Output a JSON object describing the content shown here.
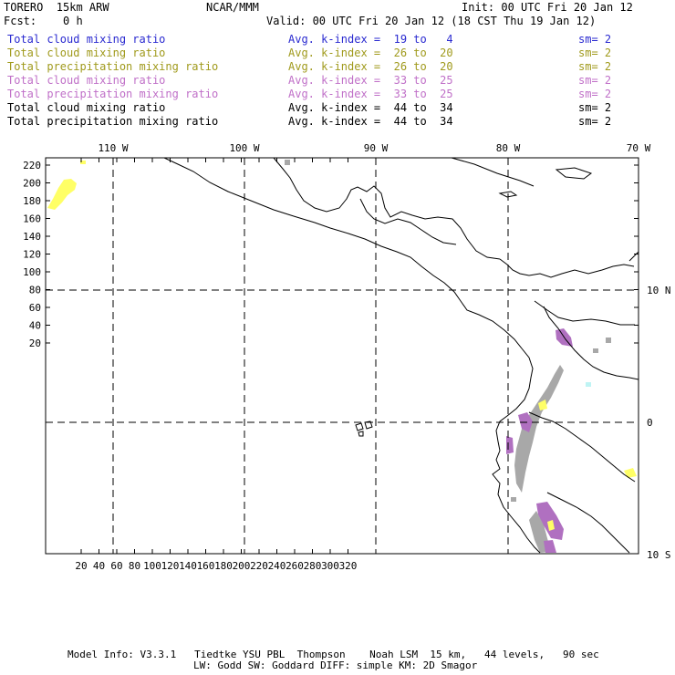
{
  "header": {
    "model": "TORERO  15km ARW",
    "org": "NCAR/MMM",
    "init": "Init: 00 UTC Fri 20 Jan 12",
    "fcst": "Fcst:    0 h",
    "valid": "Valid: 00 UTC Fri 20 Jan 12 (18 CST Thu 19 Jan 12)"
  },
  "legend": [
    {
      "field": "Total cloud mixing ratio",
      "kindex": "Avg. k-index =  19 to   4",
      "sm": "sm= 2",
      "color": "#2a2ad0"
    },
    {
      "field": "Total cloud mixing ratio",
      "kindex": "Avg. k-index =  26 to  20",
      "sm": "sm= 2",
      "color": "#a09a1c"
    },
    {
      "field": "Total precipitation mixing ratio",
      "kindex": "Avg. k-index =  26 to  20",
      "sm": "sm= 2",
      "color": "#a09a1c"
    },
    {
      "field": "Total cloud mixing ratio",
      "kindex": "Avg. k-index =  33 to  25",
      "sm": "sm= 2",
      "color": "#c070c8"
    },
    {
      "field": "Total precipitation mixing ratio",
      "kindex": "Avg. k-index =  33 to  25",
      "sm": "sm= 2",
      "color": "#c070c8"
    },
    {
      "field": "Total cloud mixing ratio",
      "kindex": "Avg. k-index =  44 to  34",
      "sm": "sm= 2",
      "color": "#000000"
    },
    {
      "field": "Total precipitation mixing ratio",
      "kindex": "Avg. k-index =  44 to  34",
      "sm": "sm= 2",
      "color": "#000000"
    }
  ],
  "map": {
    "top_lon_labels": [
      "110 W",
      "100 W",
      "90 W",
      "80 W",
      "70 W"
    ],
    "right_lat_labels": [
      "10 N",
      "0",
      "10 S"
    ],
    "y_ticks": [
      "220",
      "200",
      "180",
      "160",
      "140",
      "120",
      "100",
      "80",
      "60",
      "40",
      "20"
    ],
    "x_ticks": [
      "20",
      "40",
      "60",
      "80",
      "100",
      "120",
      "140",
      "160",
      "180",
      "200",
      "220",
      "240",
      "260",
      "280",
      "300",
      "320"
    ]
  },
  "footer": {
    "line1": "Model Info: V3.3.1   Tiedtke YSU PBL  Thompson    Noah LSM  15 km,   44 levels,   90 sec",
    "line2": "LW: Godd SW: Goddard DIFF: simple KM: 2D Smagor"
  },
  "colors": {
    "blue": "#2a2ad0",
    "olive": "#a09a1c",
    "purple": "#c070c8",
    "yellow": "#ffff66",
    "magenta": "#b070c0",
    "gray": "#a8a8a8"
  }
}
